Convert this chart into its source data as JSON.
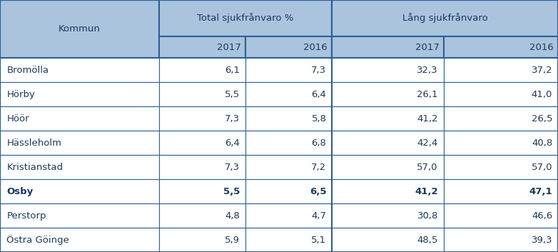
{
  "communes": [
    "Bromölla",
    "Hörby",
    "Höör",
    "Hässleholm",
    "Kristianstad",
    "Osby",
    "Perstorp",
    "Östra Göinge"
  ],
  "bold_row": "Osby",
  "total_2017": [
    "6,1",
    "5,5",
    "7,3",
    "6,4",
    "7,3",
    "5,5",
    "4,8",
    "5,9"
  ],
  "total_2016": [
    "7,3",
    "6,4",
    "5,8",
    "6,8",
    "7,2",
    "6,5",
    "4,7",
    "5,1"
  ],
  "lang_2017": [
    "32,3",
    "26,1",
    "41,2",
    "42,4",
    "57,0",
    "41,2",
    "30,8",
    "48,5"
  ],
  "lang_2016": [
    "37,2",
    "41,0",
    "26,5",
    "40,8",
    "57,0",
    "47,1",
    "46,6",
    "39,3"
  ],
  "header1_left": "Total sjukfrånvaro %",
  "header1_right": "Lång sjukfrånvaro",
  "col1_label": "Kommun",
  "year_labels": [
    "2017",
    "2016",
    "2017",
    "2016"
  ],
  "header_bg": "#aac4de",
  "border_color": "#2b6096",
  "text_color": "#1a3a5c",
  "font_size": 9.5,
  "header_font_size": 9.5,
  "fig_width": 7.82,
  "fig_height": 3.53,
  "dpi": 100
}
